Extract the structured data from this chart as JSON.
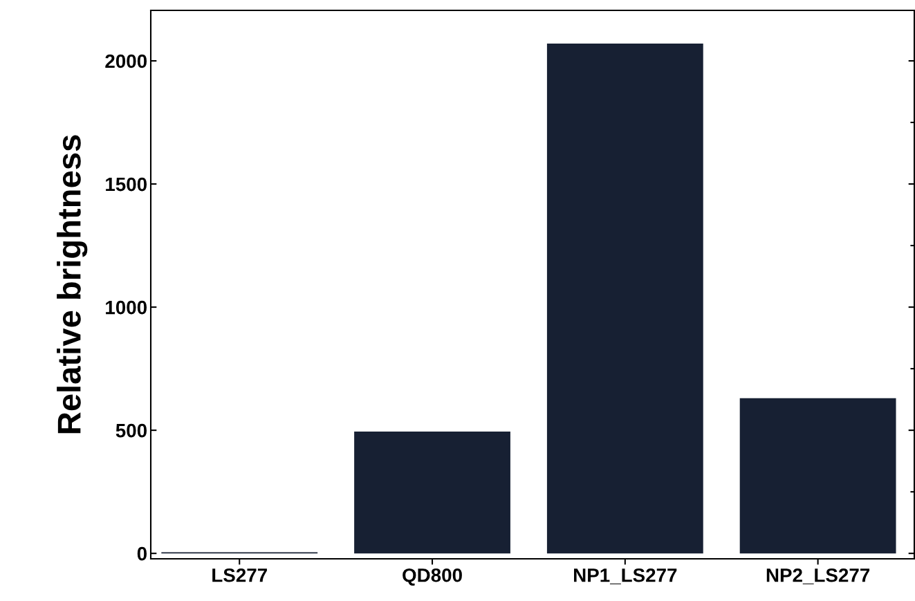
{
  "chart_data": {
    "type": "bar",
    "ylabel": "Relative brightness",
    "categories": [
      "LS277",
      "QD800",
      "NP1_LS277",
      "NP2_LS277"
    ],
    "values": [
      5,
      495,
      2070,
      630
    ],
    "color": "#172033",
    "ylim": [
      -22,
      2205
    ],
    "yticks": [
      0,
      500,
      1000,
      1500,
      2000
    ],
    "grid": false
  }
}
